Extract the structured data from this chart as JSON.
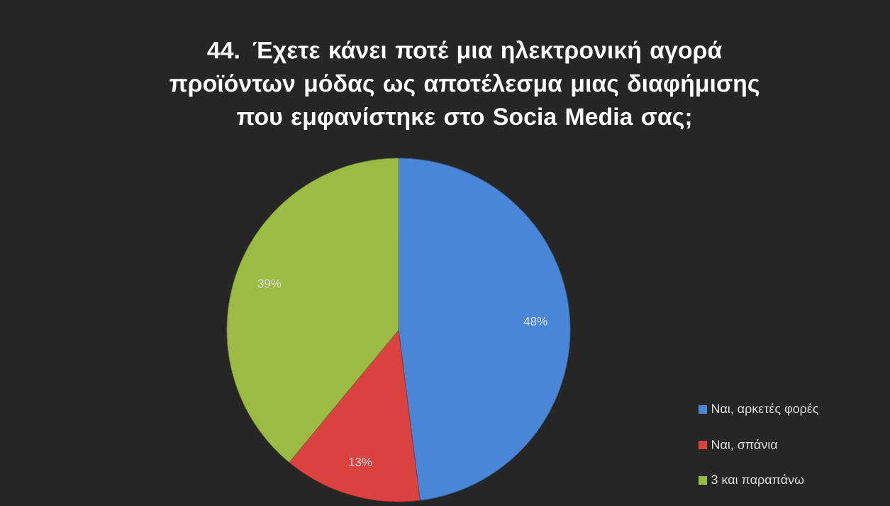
{
  "chart_data": {
    "type": "pie",
    "title": "44. Έχετε κάνει ποτέ μια ηλεκτρονική αγορά προϊόντων μόδας ως αποτέλεσμα μιας διαφήμισης που εμφανίστηκε στο Socia Media σας;",
    "categories": [
      "Ναι, αρκετές φορές",
      "Ναι, σπάνια",
      "3 και παραπάνω"
    ],
    "values": [
      48,
      13,
      39
    ],
    "value_labels": [
      "48%",
      "13%",
      "39%"
    ],
    "colors": [
      "#4a86d8",
      "#d9423f",
      "#9bbb45"
    ],
    "legend": "bottom right"
  }
}
